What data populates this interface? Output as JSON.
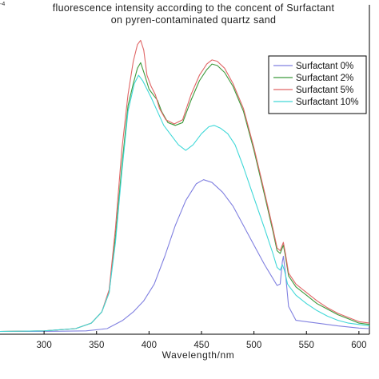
{
  "chart_data": {
    "type": "line",
    "title": "fluorescence intensity according to the concent of Surfactant",
    "subtitle": "on pyren-contaminated quartz sand",
    "xlabel": "Wavelength/nm",
    "ylabel": "",
    "corner_label": "-4",
    "xlim": [
      258,
      610
    ],
    "ylim": [
      0,
      1.2
    ],
    "x_ticks": [
      300,
      350,
      400,
      450,
      500,
      550,
      600
    ],
    "grid": false,
    "legend_position": "top-right",
    "series": [
      {
        "name": "Surfactant 0%",
        "color": "#8080e0",
        "points": [
          [
            258,
            0.01
          ],
          [
            300,
            0.01
          ],
          [
            340,
            0.012
          ],
          [
            360,
            0.02
          ],
          [
            375,
            0.05
          ],
          [
            385,
            0.08
          ],
          [
            395,
            0.12
          ],
          [
            405,
            0.18
          ],
          [
            415,
            0.28
          ],
          [
            425,
            0.39
          ],
          [
            435,
            0.48
          ],
          [
            445,
            0.54
          ],
          [
            452,
            0.555
          ],
          [
            460,
            0.545
          ],
          [
            470,
            0.51
          ],
          [
            480,
            0.46
          ],
          [
            490,
            0.39
          ],
          [
            500,
            0.32
          ],
          [
            510,
            0.25
          ],
          [
            518,
            0.2
          ],
          [
            522,
            0.175
          ],
          [
            525,
            0.18
          ],
          [
            527,
            0.26
          ],
          [
            528,
            0.28
          ],
          [
            530,
            0.22
          ],
          [
            533,
            0.1
          ],
          [
            540,
            0.05
          ],
          [
            560,
            0.04
          ],
          [
            580,
            0.03
          ],
          [
            600,
            0.022
          ],
          [
            610,
            0.02
          ]
        ]
      },
      {
        "name": "Surfactant 2%",
        "color": "#3c9a3c",
        "points": [
          [
            258,
            0.01
          ],
          [
            300,
            0.012
          ],
          [
            330,
            0.02
          ],
          [
            345,
            0.04
          ],
          [
            355,
            0.08
          ],
          [
            362,
            0.15
          ],
          [
            368,
            0.35
          ],
          [
            374,
            0.6
          ],
          [
            380,
            0.82
          ],
          [
            385,
            0.9
          ],
          [
            389,
            0.955
          ],
          [
            392,
            0.975
          ],
          [
            396,
            0.93
          ],
          [
            400,
            0.88
          ],
          [
            404,
            0.86
          ],
          [
            408,
            0.84
          ],
          [
            412,
            0.8
          ],
          [
            418,
            0.76
          ],
          [
            425,
            0.75
          ],
          [
            432,
            0.76
          ],
          [
            440,
            0.84
          ],
          [
            448,
            0.91
          ],
          [
            455,
            0.95
          ],
          [
            460,
            0.97
          ],
          [
            465,
            0.965
          ],
          [
            472,
            0.94
          ],
          [
            480,
            0.89
          ],
          [
            490,
            0.8
          ],
          [
            500,
            0.66
          ],
          [
            510,
            0.5
          ],
          [
            518,
            0.37
          ],
          [
            522,
            0.3
          ],
          [
            525,
            0.29
          ],
          [
            528,
            0.32
          ],
          [
            530,
            0.28
          ],
          [
            533,
            0.21
          ],
          [
            540,
            0.17
          ],
          [
            550,
            0.14
          ],
          [
            560,
            0.11
          ],
          [
            570,
            0.09
          ],
          [
            580,
            0.07
          ],
          [
            590,
            0.055
          ],
          [
            600,
            0.04
          ],
          [
            610,
            0.035
          ]
        ]
      },
      {
        "name": "Surfactant  5%",
        "color": "#e06666",
        "points": [
          [
            258,
            0.01
          ],
          [
            300,
            0.012
          ],
          [
            330,
            0.02
          ],
          [
            345,
            0.04
          ],
          [
            355,
            0.08
          ],
          [
            362,
            0.16
          ],
          [
            368,
            0.38
          ],
          [
            374,
            0.66
          ],
          [
            380,
            0.86
          ],
          [
            385,
            0.98
          ],
          [
            389,
            1.04
          ],
          [
            392,
            1.055
          ],
          [
            395,
            1.02
          ],
          [
            398,
            0.93
          ],
          [
            402,
            0.89
          ],
          [
            406,
            0.86
          ],
          [
            410,
            0.81
          ],
          [
            416,
            0.77
          ],
          [
            424,
            0.755
          ],
          [
            432,
            0.77
          ],
          [
            440,
            0.86
          ],
          [
            448,
            0.93
          ],
          [
            455,
            0.97
          ],
          [
            460,
            0.985
          ],
          [
            465,
            0.98
          ],
          [
            472,
            0.955
          ],
          [
            480,
            0.9
          ],
          [
            490,
            0.81
          ],
          [
            500,
            0.67
          ],
          [
            510,
            0.51
          ],
          [
            518,
            0.38
          ],
          [
            522,
            0.31
          ],
          [
            525,
            0.3
          ],
          [
            528,
            0.33
          ],
          [
            530,
            0.29
          ],
          [
            533,
            0.22
          ],
          [
            540,
            0.18
          ],
          [
            550,
            0.15
          ],
          [
            560,
            0.12
          ],
          [
            570,
            0.095
          ],
          [
            580,
            0.075
          ],
          [
            590,
            0.06
          ],
          [
            600,
            0.045
          ],
          [
            610,
            0.04
          ]
        ]
      },
      {
        "name": "Surfactant  10%",
        "color": "#40d8d8",
        "points": [
          [
            258,
            0.01
          ],
          [
            300,
            0.012
          ],
          [
            330,
            0.02
          ],
          [
            345,
            0.04
          ],
          [
            355,
            0.08
          ],
          [
            362,
            0.15
          ],
          [
            368,
            0.33
          ],
          [
            374,
            0.58
          ],
          [
            380,
            0.8
          ],
          [
            386,
            0.9
          ],
          [
            390,
            0.93
          ],
          [
            394,
            0.91
          ],
          [
            398,
            0.88
          ],
          [
            402,
            0.85
          ],
          [
            408,
            0.8
          ],
          [
            414,
            0.75
          ],
          [
            420,
            0.72
          ],
          [
            428,
            0.68
          ],
          [
            435,
            0.66
          ],
          [
            442,
            0.68
          ],
          [
            450,
            0.72
          ],
          [
            457,
            0.745
          ],
          [
            462,
            0.75
          ],
          [
            468,
            0.74
          ],
          [
            475,
            0.72
          ],
          [
            482,
            0.68
          ],
          [
            490,
            0.6
          ],
          [
            500,
            0.49
          ],
          [
            510,
            0.38
          ],
          [
            518,
            0.29
          ],
          [
            522,
            0.24
          ],
          [
            525,
            0.23
          ],
          [
            527,
            0.25
          ],
          [
            529,
            0.23
          ],
          [
            532,
            0.18
          ],
          [
            540,
            0.14
          ],
          [
            550,
            0.11
          ],
          [
            560,
            0.085
          ],
          [
            570,
            0.065
          ],
          [
            580,
            0.05
          ],
          [
            590,
            0.04
          ],
          [
            600,
            0.035
          ],
          [
            610,
            0.03
          ]
        ]
      }
    ]
  }
}
